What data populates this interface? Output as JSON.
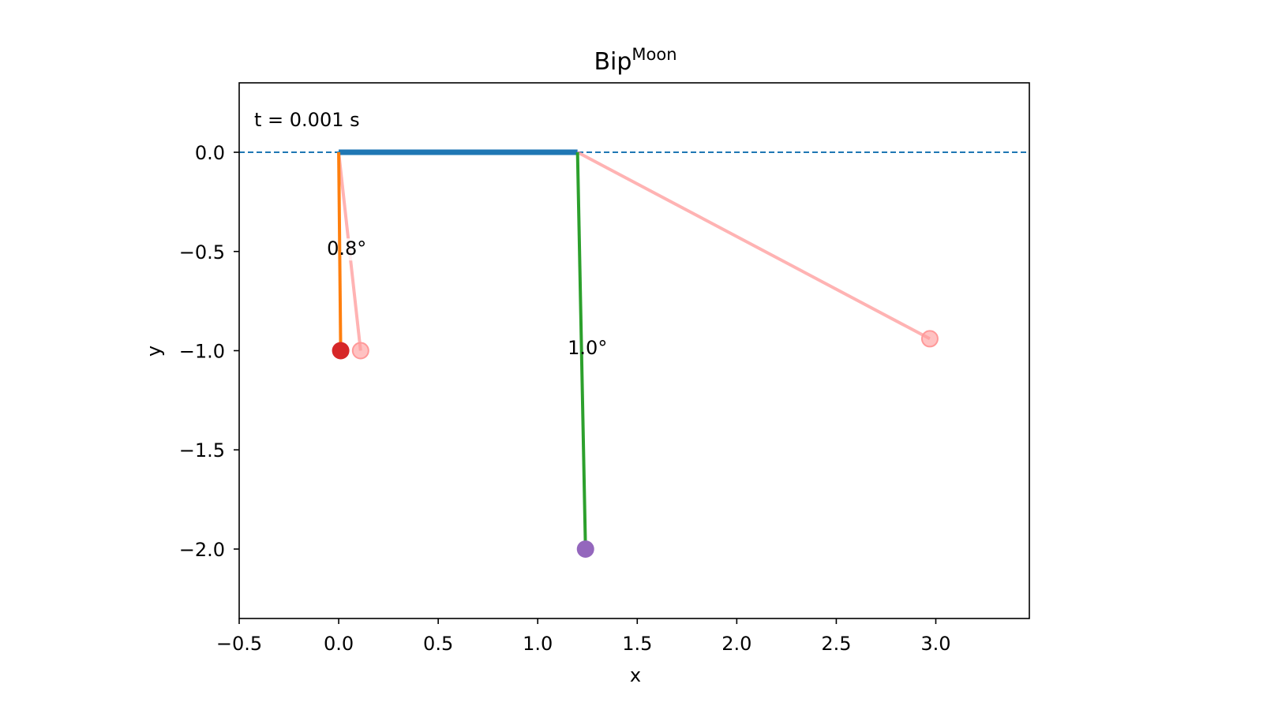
{
  "chart_data": {
    "type": "line",
    "title": "Bip",
    "title_superscript": "Moon",
    "xlabel": "x",
    "ylabel": "y",
    "xlim": [
      -0.5,
      3.47
    ],
    "ylim": [
      -2.35,
      0.35
    ],
    "xticks": [
      -0.5,
      0.0,
      0.5,
      1.0,
      1.5,
      2.0,
      2.5,
      3.0
    ],
    "xtick_labels": [
      "−0.5",
      "0.0",
      "0.5",
      "1.0",
      "1.5",
      "2.0",
      "2.5",
      "3.0"
    ],
    "yticks": [
      0.0,
      -0.5,
      -1.0,
      -1.5,
      -2.0
    ],
    "ytick_labels": [
      "0.0",
      "−0.5",
      "−1.0",
      "−1.5",
      "−2.0"
    ],
    "grid": false,
    "time_text": "t = 0.001 s",
    "reference_line": {
      "y": 0.0,
      "style": "dashed",
      "color": "#1f77b4"
    },
    "beam": {
      "x": [
        0.0,
        1.2
      ],
      "y": [
        0.0,
        0.0
      ],
      "color": "#1f77b4"
    },
    "pendulums": [
      {
        "pivot": [
          0.0,
          0.0
        ],
        "bob": [
          0.01,
          -1.0
        ],
        "rod_color": "#ff7f0e",
        "bob_color": "#d62728"
      },
      {
        "pivot": [
          1.2,
          0.0
        ],
        "bob": [
          1.24,
          -2.0
        ],
        "rod_color": "#2ca02c",
        "bob_color": "#9467bd"
      }
    ],
    "ghost_pendulums": [
      {
        "pivot": [
          0.0,
          0.0
        ],
        "bob": [
          0.11,
          -1.0
        ],
        "color": "#ff9999"
      },
      {
        "pivot": [
          1.2,
          0.0
        ],
        "bob": [
          2.97,
          -0.94
        ],
        "color": "#ff9999"
      }
    ],
    "angle_labels": [
      {
        "text": "0.8°",
        "x": 0.04,
        "y": -0.49
      },
      {
        "text": "1.0°",
        "x": 1.25,
        "y": -0.99
      }
    ]
  }
}
